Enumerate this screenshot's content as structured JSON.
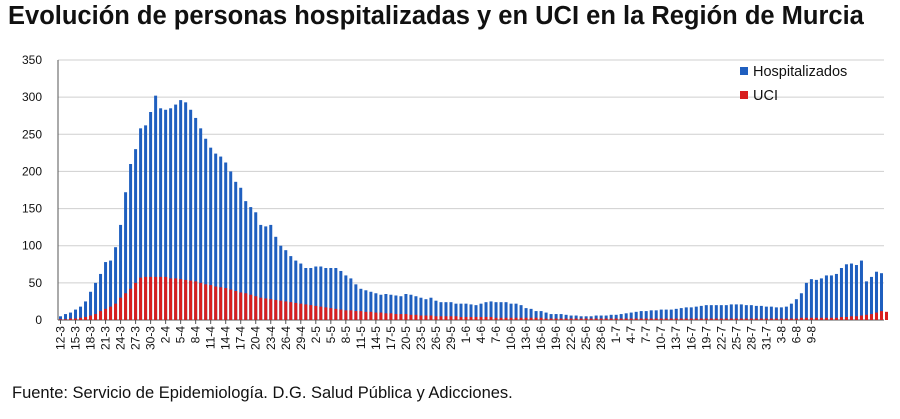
{
  "chart_data": {
    "type": "bar",
    "title": "Evolución de personas hospitalizadas y en UCI en la Región de Murcia",
    "xlabel": "",
    "ylabel": "",
    "ylim": [
      0,
      350
    ],
    "yticks": [
      0,
      50,
      100,
      150,
      200,
      250,
      300,
      350
    ],
    "grid": true,
    "legend_position": "top-right",
    "tick_labels": [
      "12-3",
      "15-3",
      "18-3",
      "21-3",
      "24-3",
      "27-3",
      "30-3",
      "2-4",
      "5-4",
      "8-4",
      "11-4",
      "14-4",
      "17-4",
      "20-4",
      "23-4",
      "26-4",
      "29-4",
      "2-5",
      "5-5",
      "8-5",
      "11-5",
      "14-5",
      "17-5",
      "20-5",
      "23-5",
      "26-5",
      "29-5",
      "1-6",
      "4-6",
      "7-6",
      "10-6",
      "13-6",
      "16-6",
      "19-6",
      "22-6",
      "25-6",
      "28-6",
      "1-7",
      "4-7",
      "7-7",
      "10-7",
      "13-7",
      "16-7",
      "19-7",
      "22-7",
      "25-7",
      "28-7",
      "31-7",
      "3-8",
      "6-8",
      "9-8"
    ],
    "series": [
      {
        "name": "Hospitalizados",
        "color": "#1f5fbf",
        "values": [
          5,
          8,
          10,
          14,
          18,
          25,
          38,
          50,
          62,
          78,
          80,
          98,
          128,
          172,
          210,
          230,
          258,
          262,
          280,
          302,
          285,
          283,
          285,
          290,
          296,
          293,
          283,
          272,
          258,
          244,
          232,
          224,
          220,
          212,
          200,
          186,
          178,
          160,
          152,
          145,
          128,
          126,
          128,
          112,
          100,
          94,
          86,
          80,
          76,
          70,
          70,
          72,
          72,
          70,
          70,
          70,
          66,
          60,
          56,
          48,
          42,
          40,
          38,
          36,
          34,
          35,
          34,
          33,
          32,
          35,
          34,
          32,
          30,
          28,
          30,
          26,
          24,
          24,
          24,
          22,
          22,
          22,
          21,
          20,
          22,
          24,
          25,
          24,
          24,
          24,
          22,
          22,
          20,
          16,
          15,
          12,
          12,
          10,
          8,
          8,
          8,
          7,
          6,
          6,
          5,
          5,
          5,
          6,
          6,
          6,
          7,
          7,
          8,
          9,
          10,
          11,
          12,
          12,
          13,
          13,
          14,
          14,
          14,
          15,
          16,
          17,
          17,
          18,
          19,
          20,
          20,
          20,
          20,
          20,
          21,
          21,
          21,
          20,
          20,
          19,
          19,
          18,
          18,
          17,
          17,
          18,
          22,
          28,
          36,
          50,
          55,
          54,
          56,
          60,
          60,
          62,
          70,
          75,
          76,
          74,
          80,
          52,
          58,
          65,
          63
        ]
      },
      {
        "name": "UCI",
        "color": "#d81e1e",
        "values": [
          1,
          1,
          2,
          2,
          3,
          4,
          6,
          8,
          12,
          15,
          18,
          22,
          30,
          36,
          42,
          50,
          57,
          58,
          58,
          58,
          58,
          58,
          56,
          56,
          55,
          54,
          53,
          52,
          50,
          48,
          47,
          45,
          44,
          43,
          41,
          39,
          37,
          36,
          34,
          32,
          30,
          29,
          28,
          27,
          26,
          25,
          24,
          23,
          22,
          21,
          20,
          19,
          18,
          17,
          16,
          15,
          14,
          13,
          13,
          12,
          12,
          11,
          11,
          10,
          10,
          9,
          9,
          8,
          8,
          8,
          7,
          7,
          6,
          6,
          6,
          5,
          5,
          5,
          5,
          5,
          4,
          4,
          4,
          4,
          4,
          4,
          4,
          3,
          3,
          3,
          3,
          3,
          3,
          3,
          3,
          3,
          3,
          2,
          2,
          2,
          2,
          2,
          2,
          2,
          2,
          2,
          2,
          2,
          2,
          2,
          2,
          2,
          2,
          2,
          2,
          2,
          2,
          2,
          2,
          2,
          2,
          2,
          2,
          2,
          2,
          2,
          2,
          2,
          2,
          2,
          2,
          2,
          2,
          2,
          2,
          2,
          2,
          2,
          2,
          2,
          2,
          2,
          2,
          2,
          2,
          2,
          2,
          2,
          3,
          3,
          3,
          3,
          3,
          3,
          3,
          3,
          4,
          4,
          5,
          5,
          6,
          7,
          8,
          10,
          12,
          11
        ]
      }
    ]
  },
  "footer": {
    "source": "Fuente: Servicio de Epidemiología. D.G. Salud Pública y Adicciones."
  }
}
